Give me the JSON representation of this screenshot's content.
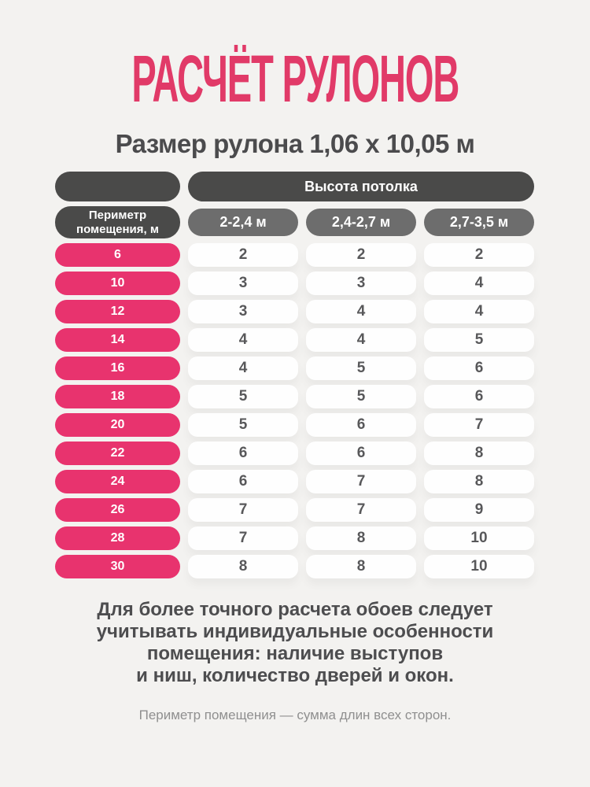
{
  "title": "РАСЧЁТ РУЛОНОВ",
  "subtitle": "Размер рулона 1,06 х 10,05 м",
  "table": {
    "column_group_header": "Высота потолка",
    "row_header_line1": "Периметр",
    "row_header_line2": "помещения, м"
  },
  "note": {
    "line1": "Для более точного расчета обоев следует",
    "line2": "учитывать индивидуальные особенности",
    "line3": "помещения: наличие выступов",
    "line4": "и ниш, количество дверей и окон."
  },
  "footnote": "Периметр помещения — сумма длин всех сторон.",
  "colors": {
    "accent_pink": "#e8336e",
    "title_pink": "#e13a68",
    "dark_pill": "#4a4a49",
    "gray_pill": "#6d6d6d",
    "background": "#f3f2f0",
    "text_dark": "#4d4d4f",
    "text_muted": "#8f8f8f"
  },
  "chart_data": {
    "type": "table",
    "title": "РАСЧЁТ РУЛОНОВ",
    "subtitle": "Размер рулона 1,06 х 10,05 м",
    "row_header": "Периметр помещения, м",
    "column_group_header": "Высота потолка",
    "columns": [
      "2-2,4 м",
      "2,4-2,7 м",
      "2,7-3,5 м"
    ],
    "categories": [
      6,
      10,
      12,
      14,
      16,
      18,
      20,
      22,
      24,
      26,
      28,
      30
    ],
    "series": [
      {
        "name": "2-2,4 м",
        "values": [
          2,
          3,
          3,
          4,
          4,
          5,
          5,
          6,
          6,
          7,
          7,
          8
        ]
      },
      {
        "name": "2,4-2,7 м",
        "values": [
          2,
          3,
          4,
          4,
          5,
          5,
          6,
          6,
          7,
          7,
          8,
          8
        ]
      },
      {
        "name": "2,7-3,5 м",
        "values": [
          2,
          4,
          4,
          5,
          6,
          6,
          7,
          8,
          8,
          9,
          10,
          10
        ]
      }
    ]
  }
}
